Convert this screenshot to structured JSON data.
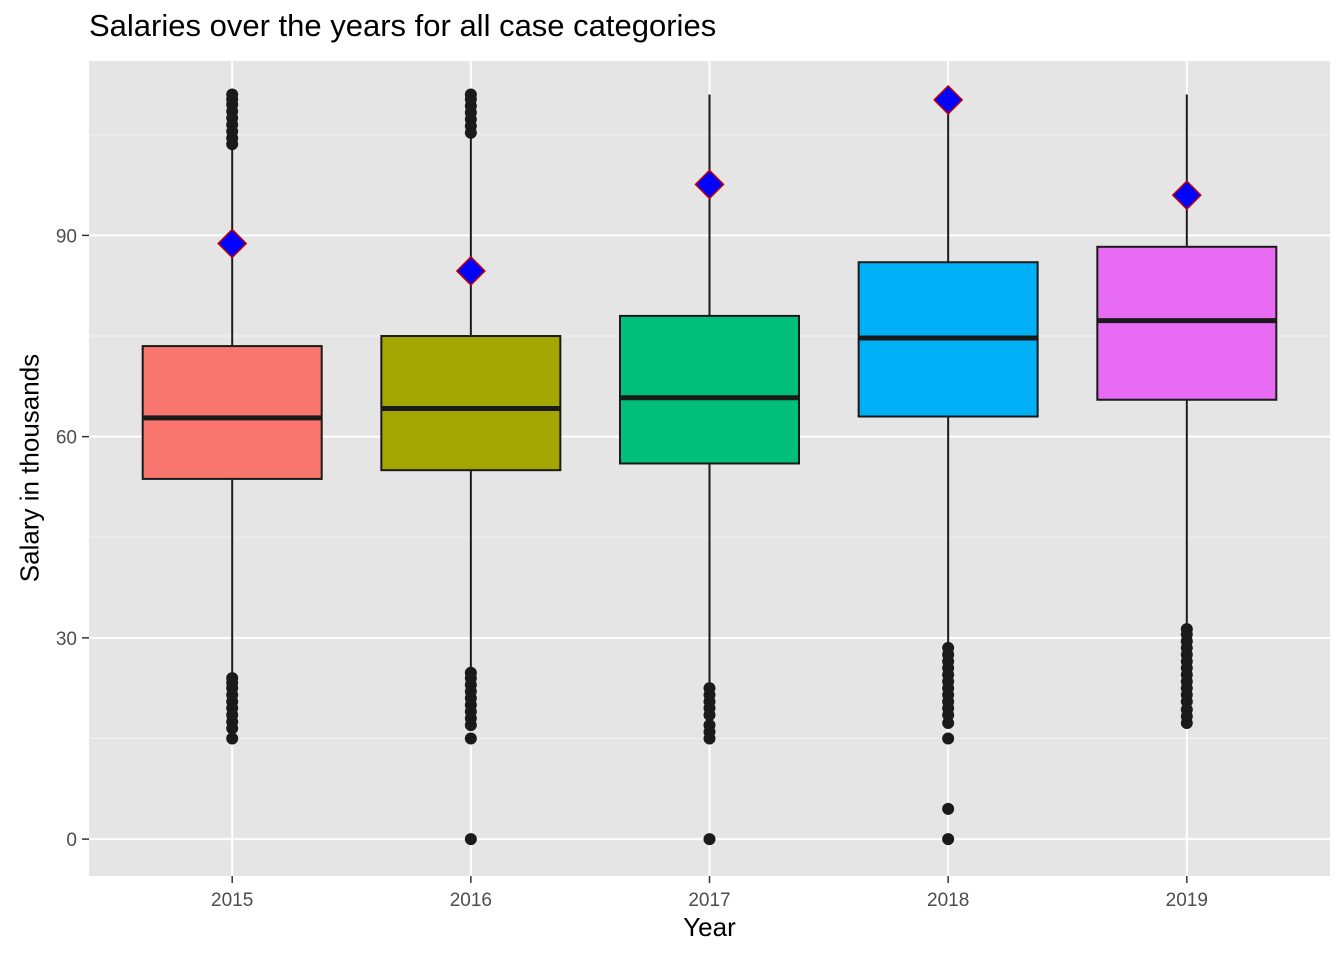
{
  "chart_data": {
    "type": "box",
    "title": "Salaries over the years for all case categories",
    "xlabel": "Year",
    "ylabel": "Salary in thousands",
    "categories": [
      "2015",
      "2016",
      "2017",
      "2018",
      "2019"
    ],
    "ylim": [
      -5.5,
      116
    ],
    "yticks": [
      0,
      30,
      60,
      90
    ],
    "grid": true,
    "legend": "none",
    "background": "#e5e5e5",
    "colors": {
      "fills": [
        "#f8766d",
        "#a3a500",
        "#00bf7d",
        "#00b0f6",
        "#e76bf3"
      ],
      "line": "#1a1a1a",
      "mean_marker_fill": "#0000ff",
      "mean_marker_stroke": "#c00000"
    },
    "series": [
      {
        "category": "2015",
        "lower_whisker": 24.3,
        "q1": 53.7,
        "median": 62.8,
        "q3": 73.5,
        "upper_whisker": 103.2,
        "mean": 88.8,
        "outliers_low": [
          15.0,
          16.5,
          17.5,
          18.5,
          19.5,
          20.5,
          21.5,
          22.5,
          23.3,
          24.0
        ],
        "outliers_high": [
          103.6,
          104.5,
          105.5,
          106.5,
          107.5,
          108.5,
          109.5,
          110.3,
          111.0
        ]
      },
      {
        "category": "2016",
        "lower_whisker": 25.0,
        "q1": 55.0,
        "median": 64.2,
        "q3": 75.0,
        "upper_whisker": 105.0,
        "mean": 84.7,
        "outliers_low": [
          0,
          15.0,
          17.0,
          18.0,
          19.0,
          20.0,
          21.0,
          22.0,
          23.0,
          24.0,
          24.8
        ],
        "outliers_high": [
          105.3,
          106.3,
          107.3,
          108.3,
          109.3,
          110.3,
          111.0
        ]
      },
      {
        "category": "2017",
        "lower_whisker": 23.0,
        "q1": 56.0,
        "median": 65.8,
        "q3": 78.0,
        "upper_whisker": 111.0,
        "mean": 97.6,
        "outliers_low": [
          0,
          15.0,
          16.0,
          17.0,
          18.5,
          19.5,
          20.5,
          21.5,
          22.5
        ],
        "outliers_high": []
      },
      {
        "category": "2018",
        "lower_whisker": 29.0,
        "q1": 63.0,
        "median": 74.7,
        "q3": 86.0,
        "upper_whisker": 111.0,
        "mean": 110.2,
        "outliers_low": [
          0,
          4.5,
          15.0,
          17.3,
          18.5,
          19.5,
          20.5,
          21.5,
          22.5,
          23.5,
          24.5,
          25.5,
          26.5,
          27.5,
          28.5
        ],
        "outliers_high": []
      },
      {
        "category": "2019",
        "lower_whisker": 31.6,
        "q1": 65.5,
        "median": 77.3,
        "q3": 88.3,
        "upper_whisker": 111.0,
        "mean": 96.0,
        "outliers_low": [
          17.3,
          18.3,
          19.3,
          20.5,
          21.5,
          22.5,
          23.5,
          24.5,
          25.5,
          26.5,
          27.5,
          28.5,
          29.5,
          30.5,
          31.3
        ],
        "outliers_high": []
      }
    ]
  }
}
